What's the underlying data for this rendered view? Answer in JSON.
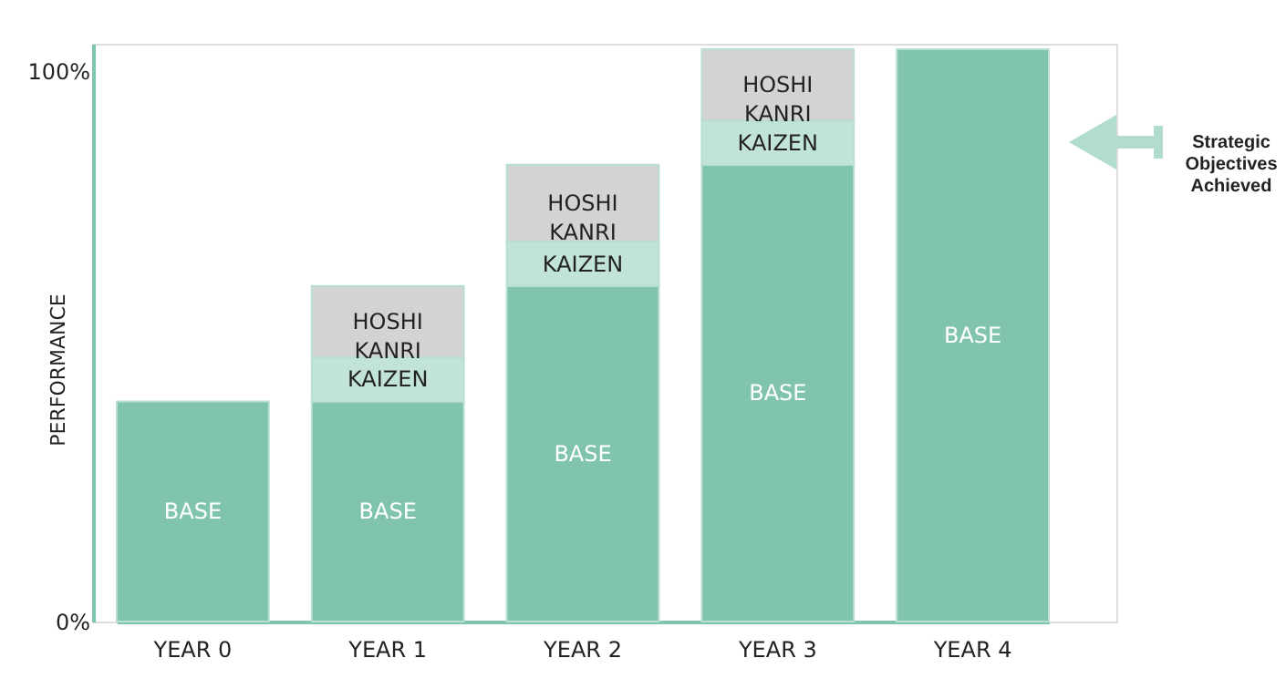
{
  "chart_data": {
    "type": "bar",
    "stacked": true,
    "ylabel": "PERFORMANCE",
    "categories": [
      "YEAR 0",
      "YEAR 1",
      "YEAR 2",
      "YEAR 3",
      "YEAR 4"
    ],
    "series": [
      {
        "name": "BASE",
        "color": "#80c4b0",
        "values": [
          40,
          40,
          61,
          83,
          104
        ]
      },
      {
        "name": "KAIZEN",
        "color": "#c2e3d8",
        "values": [
          null,
          8,
          8,
          8,
          null
        ]
      },
      {
        "name": "HOSHI KANRI",
        "color": "#d3d3d5",
        "values": [
          null,
          13,
          14,
          13,
          null
        ]
      }
    ],
    "ylim": [
      0,
      105
    ],
    "yticks": [
      {
        "value": 0,
        "label": "0%"
      },
      {
        "value": 100,
        "label": "100%"
      }
    ],
    "grid": false,
    "legend": false,
    "annotations": [
      "Strategic Objectives Achieved"
    ]
  }
}
